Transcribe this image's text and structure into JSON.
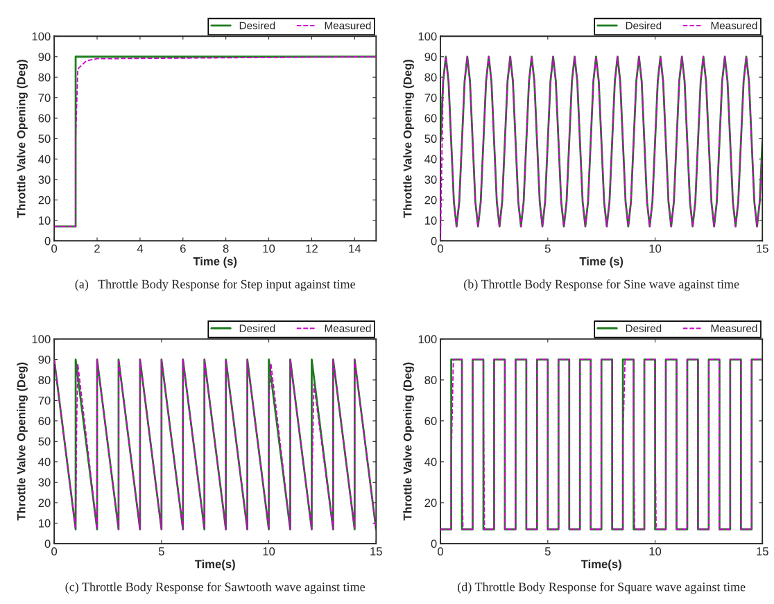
{
  "chart_data": [
    {
      "type": "line",
      "title": "(a)   Throttle Body Response for Step input against time",
      "xlabel": "Time (s)",
      "ylabel": "Throttle Valve Opening (Deg)",
      "xlim": [
        0,
        15
      ],
      "xticks": [
        0,
        2,
        4,
        6,
        8,
        10,
        12,
        14
      ],
      "ylim": [
        0,
        100
      ],
      "yticks": [
        0,
        10,
        20,
        30,
        40,
        50,
        60,
        70,
        80,
        90,
        100
      ],
      "grid": false,
      "legend": "top right",
      "series": [
        {
          "name": "Desired",
          "color": "#1e7b1e",
          "line_style": "solid",
          "x": [
            0,
            1,
            1,
            15
          ],
          "values": [
            7,
            7,
            90,
            90
          ]
        },
        {
          "name": "Measured",
          "color": "#cc00cc",
          "line_style": "dashed",
          "x": [
            0,
            1,
            1,
            1.1,
            1.5,
            2,
            15
          ],
          "values": [
            7,
            7,
            50,
            84,
            88,
            89,
            90
          ]
        }
      ]
    },
    {
      "type": "line",
      "title": "(b) Throttle Body Response for Sine wave against time",
      "xlabel": "Time (s)",
      "ylabel": "Throttle Valve Opening (Deg)",
      "xlim": [
        0,
        15
      ],
      "xticks": [
        0,
        5,
        10,
        15
      ],
      "ylim": [
        0,
        100
      ],
      "yticks": [
        0,
        10,
        20,
        30,
        40,
        50,
        60,
        70,
        80,
        90,
        100
      ],
      "grid": false,
      "legend": "top right",
      "x": [
        0,
        0.125,
        0.25,
        0.375,
        0.5,
        0.625,
        0.75,
        0.875,
        1,
        1.125,
        1.25,
        1.375,
        1.5,
        1.625,
        1.75,
        1.875,
        2,
        2.125,
        2.25,
        2.375,
        2.5,
        2.625,
        2.75,
        2.875,
        3,
        3.125,
        3.25,
        3.375,
        3.5,
        3.625,
        3.75,
        3.875,
        4,
        4.125,
        4.25,
        4.375,
        4.5,
        4.625,
        4.75,
        4.875,
        5,
        5.125,
        5.25,
        5.375,
        5.5,
        5.625,
        5.75,
        5.875,
        6,
        6.125,
        6.25,
        6.375,
        6.5,
        6.625,
        6.75,
        6.875,
        7,
        7.125,
        7.25,
        7.375,
        7.5,
        7.625,
        7.75,
        7.875,
        8,
        8.125,
        8.25,
        8.375,
        8.5,
        8.625,
        8.75,
        8.875,
        9,
        9.125,
        9.25,
        9.375,
        9.5,
        9.625,
        9.75,
        9.875,
        10,
        10.125,
        10.25,
        10.375,
        10.5,
        10.625,
        10.75,
        10.875,
        11,
        11.125,
        11.25,
        11.375,
        11.5,
        11.625,
        11.75,
        11.875,
        12,
        12.125,
        12.25,
        12.375,
        12.5,
        12.625,
        12.75,
        12.875,
        13,
        13.125,
        13.25,
        13.375,
        13.5,
        13.625,
        13.75,
        13.875,
        14,
        14.125,
        14.25,
        14.375,
        14.5,
        14.625,
        14.75,
        14.875,
        15
      ],
      "series": [
        {
          "name": "Desired",
          "color": "#1e7b1e",
          "line_style": "solid",
          "values": [
            48.5,
            78,
            90,
            78,
            48.5,
            19,
            7,
            19,
            48.5,
            78,
            90,
            78,
            48.5,
            19,
            7,
            19,
            48.5,
            78,
            90,
            78,
            48.5,
            19,
            7,
            19,
            48.5,
            78,
            90,
            78,
            48.5,
            19,
            7,
            19,
            48.5,
            78,
            90,
            78,
            48.5,
            19,
            7,
            19,
            48.5,
            78,
            90,
            78,
            48.5,
            19,
            7,
            19,
            48.5,
            78,
            90,
            78,
            48.5,
            19,
            7,
            19,
            48.5,
            78,
            90,
            78,
            48.5,
            19,
            7,
            19,
            48.5,
            78,
            90,
            78,
            48.5,
            19,
            7,
            19,
            48.5,
            78,
            90,
            78,
            48.5,
            19,
            7,
            19,
            48.5,
            78,
            90,
            78,
            48.5,
            19,
            7,
            19,
            48.5,
            78,
            90,
            78,
            48.5,
            19,
            7,
            19,
            48.5,
            78,
            90,
            78,
            48.5,
            19,
            7,
            19,
            48.5,
            78,
            90,
            78,
            48.5,
            19,
            7,
            19,
            48.5,
            78,
            90,
            78,
            48.5,
            19,
            7,
            19,
            48.5
          ]
        },
        {
          "name": "Measured",
          "color": "#cc00cc",
          "line_style": "dashed",
          "values": [
            0,
            78,
            90,
            78,
            48.5,
            19,
            7,
            19,
            48.5,
            78,
            90,
            78,
            48.5,
            19,
            7,
            19,
            48.5,
            78,
            90,
            78,
            48.5,
            19,
            7,
            19,
            48.5,
            78,
            90,
            78,
            48.5,
            19,
            7,
            19,
            48.5,
            78,
            90,
            78,
            48.5,
            19,
            7,
            19,
            48.5,
            78,
            90,
            78,
            48.5,
            19,
            7,
            19,
            48.5,
            78,
            90,
            78,
            48.5,
            19,
            7,
            19,
            48.5,
            78,
            90,
            78,
            48.5,
            19,
            7,
            19,
            48.5,
            78,
            90,
            78,
            48.5,
            19,
            7,
            19,
            48.5,
            78,
            90,
            78,
            48.5,
            19,
            7,
            19,
            48.5,
            78,
            90,
            78,
            48.5,
            19,
            7,
            19,
            48.5,
            78,
            90,
            78,
            48.5,
            19,
            7,
            19,
            48.5,
            78,
            90,
            78,
            48.5,
            19,
            7,
            19,
            48.5,
            78,
            90,
            78,
            48.5,
            19,
            7,
            19,
            48.5,
            78,
            90,
            78,
            48.5,
            19,
            7,
            19,
            40
          ]
        }
      ]
    },
    {
      "type": "line",
      "title": "(c) Throttle Body Response for Sawtooth wave against time",
      "xlabel": "Time(s)",
      "ylabel": "Throttle Valve Opening (Deg)",
      "xlim": [
        0,
        15
      ],
      "xticks": [
        0,
        5,
        10,
        15
      ],
      "ylim": [
        0,
        100
      ],
      "yticks": [
        0,
        10,
        20,
        30,
        40,
        50,
        60,
        70,
        80,
        90,
        100
      ],
      "grid": false,
      "legend": "top right",
      "series": [
        {
          "name": "Desired",
          "color": "#1e7b1e",
          "line_style": "solid",
          "x": [
            0,
            1,
            1,
            2,
            2,
            3,
            3,
            4,
            4,
            5,
            5,
            6,
            6,
            7,
            7,
            8,
            8,
            9,
            9,
            10,
            10,
            11,
            11,
            12,
            12,
            13,
            13,
            14,
            14,
            15
          ],
          "values": [
            90,
            7,
            90,
            7,
            90,
            7,
            90,
            7,
            90,
            7,
            90,
            7,
            90,
            7,
            90,
            7,
            90,
            7,
            90,
            7,
            90,
            7,
            90,
            7,
            90,
            7,
            90,
            7,
            90,
            7
          ]
        },
        {
          "name": "Measured",
          "color": "#cc00cc",
          "line_style": "dashed",
          "x": [
            0,
            1,
            1.05,
            1.1,
            2,
            2,
            3,
            3,
            4,
            4,
            5,
            5,
            6,
            6,
            7,
            7,
            8,
            8,
            9,
            9,
            10,
            10,
            10.1,
            11,
            11,
            12,
            12,
            12.1,
            13,
            13,
            14,
            14,
            15
          ],
          "values": [
            90,
            7,
            60,
            88,
            7,
            90,
            7,
            90,
            7,
            90,
            7,
            90,
            7,
            90,
            7,
            90,
            7,
            90,
            7,
            90,
            7,
            68,
            88,
            7,
            90,
            7,
            22,
            78,
            7,
            90,
            7,
            90,
            7
          ]
        }
      ]
    },
    {
      "type": "line",
      "title": "(d) Throttle Body Response for Square wave against time",
      "xlabel": "Time(s)",
      "ylabel": "Throttle Valve Opening (Deg)",
      "xlim": [
        0,
        15
      ],
      "xticks": [
        0,
        5,
        10,
        15
      ],
      "ylim": [
        0,
        100
      ],
      "yticks": [
        0,
        20,
        40,
        60,
        80,
        100
      ],
      "grid": false,
      "legend": "top right",
      "series": [
        {
          "name": "Desired",
          "color": "#1e7b1e",
          "line_style": "solid",
          "x": [
            0,
            0.5,
            0.5,
            1,
            1,
            1.5,
            1.5,
            2,
            2,
            2.5,
            2.5,
            3,
            3,
            3.5,
            3.5,
            4,
            4,
            4.5,
            4.5,
            5,
            5,
            5.5,
            5.5,
            6,
            6,
            6.5,
            6.5,
            7,
            7,
            7.5,
            7.5,
            8,
            8,
            8.5,
            8.5,
            9,
            9,
            9.5,
            9.5,
            10,
            10,
            10.5,
            10.5,
            11,
            11,
            11.5,
            11.5,
            12,
            12,
            12.5,
            12.5,
            13,
            13,
            13.5,
            13.5,
            14,
            14,
            14.5,
            14.5,
            15
          ],
          "values": [
            7,
            7,
            90,
            90,
            7,
            7,
            90,
            90,
            7,
            7,
            90,
            90,
            7,
            7,
            90,
            90,
            7,
            7,
            90,
            90,
            7,
            7,
            90,
            90,
            7,
            7,
            90,
            90,
            7,
            7,
            90,
            90,
            7,
            7,
            90,
            90,
            7,
            7,
            90,
            90,
            7,
            7,
            90,
            90,
            7,
            7,
            90,
            90,
            7,
            7,
            90,
            90,
            7,
            7,
            90,
            90,
            7,
            7,
            90,
            90
          ]
        },
        {
          "name": "Measured",
          "color": "#cc00cc",
          "line_style": "dashed",
          "x": [
            0,
            0.5,
            0.5,
            0.6,
            1,
            1,
            1.05,
            1.5,
            1.5,
            2,
            2,
            2.05,
            2.5,
            2.5,
            3,
            3,
            3.5,
            3.5,
            4,
            4,
            4.5,
            4.5,
            5,
            5,
            5.5,
            5.5,
            6,
            6,
            6.5,
            6.5,
            7,
            7,
            7.5,
            7.5,
            8,
            8,
            8.5,
            8.5,
            8.6,
            9,
            9,
            9.05,
            9.5,
            9.5,
            10,
            10,
            10.05,
            10.5,
            10.5,
            11,
            11,
            11.5,
            11.5,
            12,
            12,
            12.5,
            12.5,
            13,
            13,
            13.5,
            13.5,
            14,
            14,
            14.5,
            14.5,
            15
          ],
          "values": [
            7,
            7,
            40,
            90,
            90,
            33,
            7,
            7,
            90,
            90,
            72,
            7,
            7,
            90,
            90,
            7,
            7,
            90,
            90,
            7,
            7,
            90,
            90,
            7,
            7,
            90,
            90,
            7,
            7,
            90,
            90,
            7,
            7,
            90,
            90,
            7,
            7,
            50,
            90,
            90,
            50,
            7,
            7,
            90,
            90,
            57,
            7,
            7,
            90,
            90,
            7,
            7,
            90,
            90,
            7,
            7,
            90,
            90,
            7,
            7,
            90,
            90,
            7,
            7,
            90,
            90
          ]
        }
      ]
    }
  ]
}
